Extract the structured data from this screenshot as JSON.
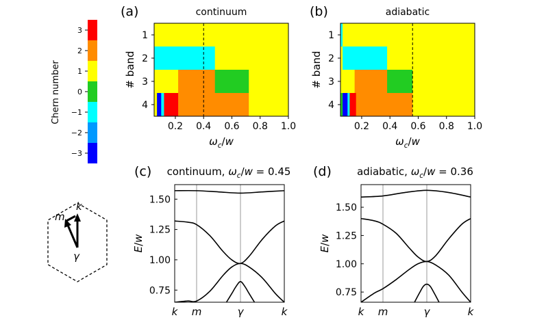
{
  "colorbar": {
    "label": "Chern number",
    "ticks": [
      3,
      2,
      1,
      0,
      -1,
      -2,
      -3
    ],
    "colors": [
      "#ff0000",
      "#ff8c00",
      "#ffff00",
      "#22cc22",
      "#00ffff",
      "#0099ff",
      "#0000ff"
    ]
  },
  "hexagon": {
    "labels": {
      "k": "k",
      "m": "m",
      "gamma": "γ"
    }
  },
  "chart_data": [
    {
      "panel": "(a)",
      "type": "heatmap",
      "title": "continuum",
      "xlabel": "ω_c/w",
      "ylabel": "# band",
      "xlim": [
        0.05,
        1.0
      ],
      "ylim": [
        4.5,
        0.5
      ],
      "xticks": [
        "0.2",
        "0.4",
        "0.6",
        "0.8",
        "1.0"
      ],
      "yticks": [
        "1",
        "2",
        "3",
        "4"
      ],
      "dashed_line_x": 0.4,
      "cells": [
        {
          "band": 1,
          "x0": 0.05,
          "x1": 1.0,
          "chern": 1
        },
        {
          "band": 2,
          "x0": 0.05,
          "x1": 0.48,
          "chern": -1
        },
        {
          "band": 2,
          "x0": 0.48,
          "x1": 1.0,
          "chern": 1
        },
        {
          "band": 3,
          "x0": 0.05,
          "x1": 0.22,
          "chern": 1
        },
        {
          "band": 3,
          "x0": 0.22,
          "x1": 0.48,
          "chern": 2
        },
        {
          "band": 3,
          "x0": 0.48,
          "x1": 0.72,
          "chern": 0
        },
        {
          "band": 3,
          "x0": 0.72,
          "x1": 1.0,
          "chern": 1
        },
        {
          "band": 4,
          "x0": 0.05,
          "x1": 0.07,
          "chern": 1
        },
        {
          "band": 4,
          "x0": 0.07,
          "x1": 0.1,
          "chern": -3
        },
        {
          "band": 4,
          "x0": 0.1,
          "x1": 0.12,
          "chern": -1
        },
        {
          "band": 4,
          "x0": 0.12,
          "x1": 0.22,
          "chern": 3
        },
        {
          "band": 4,
          "x0": 0.22,
          "x1": 0.72,
          "chern": 2
        },
        {
          "band": 4,
          "x0": 0.72,
          "x1": 1.0,
          "chern": 1
        }
      ]
    },
    {
      "panel": "(b)",
      "type": "heatmap",
      "title": "adiabatic",
      "xlabel": "ω_c/w",
      "ylabel": "# band",
      "xlim": [
        0.05,
        1.0
      ],
      "ylim": [
        4.5,
        0.5
      ],
      "xticks": [
        "0.2",
        "0.4",
        "0.6",
        "0.8",
        "1.0"
      ],
      "yticks": [
        "1",
        "2",
        "3",
        "4"
      ],
      "dashed_line_x": 0.56,
      "cells": [
        {
          "band": 1,
          "x0": 0.05,
          "x1": 0.065,
          "chern": -1
        },
        {
          "band": 1,
          "x0": 0.065,
          "x1": 1.0,
          "chern": 1
        },
        {
          "band": 2,
          "x0": 0.05,
          "x1": 0.065,
          "chern": 1
        },
        {
          "band": 2,
          "x0": 0.065,
          "x1": 0.38,
          "chern": -1
        },
        {
          "band": 2,
          "x0": 0.38,
          "x1": 1.0,
          "chern": 1
        },
        {
          "band": 3,
          "x0": 0.05,
          "x1": 0.15,
          "chern": 1
        },
        {
          "band": 3,
          "x0": 0.15,
          "x1": 0.38,
          "chern": 2
        },
        {
          "band": 3,
          "x0": 0.38,
          "x1": 0.56,
          "chern": 0
        },
        {
          "band": 3,
          "x0": 0.56,
          "x1": 1.0,
          "chern": 1
        },
        {
          "band": 4,
          "x0": 0.05,
          "x1": 0.065,
          "chern": 0
        },
        {
          "band": 4,
          "x0": 0.065,
          "x1": 0.1,
          "chern": -3
        },
        {
          "band": 4,
          "x0": 0.1,
          "x1": 0.115,
          "chern": -1
        },
        {
          "band": 4,
          "x0": 0.115,
          "x1": 0.16,
          "chern": 3
        },
        {
          "band": 4,
          "x0": 0.16,
          "x1": 0.56,
          "chern": 2
        },
        {
          "band": 4,
          "x0": 0.56,
          "x1": 1.0,
          "chern": 1
        }
      ]
    },
    {
      "panel": "(c)",
      "type": "line",
      "title": "continuum, ω_c/w = 0.45",
      "xlabel": "",
      "ylabel": "E/w",
      "ylim": [
        0.65,
        1.62
      ],
      "yticks": [
        0.75,
        1.0,
        1.25,
        1.5
      ],
      "ytick_labels": [
        "0.75",
        "1.00",
        "1.25",
        "1.50"
      ],
      "x_ticks": [
        {
          "label": "k",
          "x": 0
        },
        {
          "label": "m",
          "x": 0.5
        },
        {
          "label": "γ",
          "x": 1.5
        },
        {
          "label": "k",
          "x": 2.5
        }
      ],
      "series": [
        {
          "x": [
            0,
            0.5,
            1.0,
            1.5,
            2.0,
            2.5
          ],
          "y": [
            1.57,
            1.57,
            1.56,
            1.55,
            1.56,
            1.57
          ]
        },
        {
          "x": [
            0,
            0.3,
            0.5,
            0.8,
            1.1,
            1.3,
            1.5,
            1.7,
            2.0,
            2.3,
            2.5
          ],
          "y": [
            1.32,
            1.31,
            1.29,
            1.2,
            1.07,
            1.0,
            0.97,
            1.03,
            1.17,
            1.28,
            1.32
          ]
        },
        {
          "x": [
            0,
            0.3,
            0.5,
            0.8,
            1.1,
            1.3,
            1.5,
            1.7,
            2.0,
            2.3,
            2.5
          ],
          "y": [
            0.65,
            0.66,
            0.66,
            0.74,
            0.87,
            0.94,
            0.97,
            0.94,
            0.85,
            0.72,
            0.65
          ]
        },
        {
          "x": [
            1.18,
            1.3,
            1.4,
            1.5,
            1.6,
            1.7,
            1.82
          ],
          "y": [
            0.65,
            0.72,
            0.78,
            0.82,
            0.78,
            0.72,
            0.65
          ]
        }
      ]
    },
    {
      "panel": "(d)",
      "type": "line",
      "title": "adiabatic, ω_c/w = 0.36",
      "xlabel": "",
      "ylabel": "E/w",
      "ylim": [
        0.66,
        1.7
      ],
      "yticks": [
        0.75,
        1.0,
        1.25,
        1.5
      ],
      "ytick_labels": [
        "0.75",
        "1.00",
        "1.25",
        "1.50"
      ],
      "x_ticks": [
        {
          "label": "k",
          "x": 0
        },
        {
          "label": "m",
          "x": 0.5
        },
        {
          "label": "γ",
          "x": 1.5
        },
        {
          "label": "k",
          "x": 2.5
        }
      ],
      "series": [
        {
          "x": [
            0,
            0.5,
            1.0,
            1.5,
            2.0,
            2.5
          ],
          "y": [
            1.59,
            1.6,
            1.63,
            1.65,
            1.63,
            1.59
          ]
        },
        {
          "x": [
            0,
            0.3,
            0.5,
            0.8,
            1.1,
            1.3,
            1.5,
            1.7,
            2.0,
            2.3,
            2.5
          ],
          "y": [
            1.4,
            1.38,
            1.35,
            1.27,
            1.14,
            1.06,
            1.02,
            1.07,
            1.22,
            1.35,
            1.4
          ]
        },
        {
          "x": [
            0,
            0.3,
            0.5,
            0.8,
            1.1,
            1.3,
            1.5,
            1.7,
            2.0,
            2.3,
            2.5
          ],
          "y": [
            0.66,
            0.74,
            0.78,
            0.86,
            0.95,
            1.0,
            1.02,
            0.99,
            0.9,
            0.75,
            0.66
          ]
        },
        {
          "x": [
            1.22,
            1.33,
            1.42,
            1.5,
            1.58,
            1.67,
            1.78
          ],
          "y": [
            0.66,
            0.74,
            0.8,
            0.82,
            0.8,
            0.74,
            0.66
          ]
        }
      ]
    }
  ]
}
